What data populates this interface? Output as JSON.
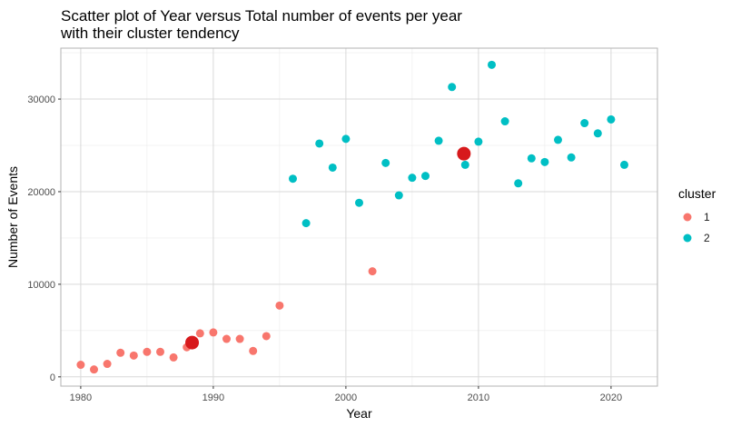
{
  "chart_data": {
    "type": "scatter",
    "title_lines": [
      "Scatter plot of Year versus Total number of events per year",
      "with their cluster tendency"
    ],
    "xlabel": "Year",
    "ylabel": "Number of Events",
    "xlim": [
      1978.5,
      2023.5
    ],
    "ylim": [
      -1000,
      35500
    ],
    "x_ticks": [
      1980,
      1990,
      2000,
      2010,
      2020
    ],
    "y_ticks": [
      0,
      10000,
      20000,
      30000
    ],
    "x_tick_labels": [
      "1980",
      "1990",
      "2000",
      "2010",
      "2020"
    ],
    "y_tick_labels": [
      "0",
      "10000",
      "20000",
      "30000"
    ],
    "grid": true,
    "legend": {
      "title": "cluster",
      "position": "right",
      "entries": [
        {
          "label": "1",
          "color": "#F8766D"
        },
        {
          "label": "2",
          "color": "#00BFC4"
        }
      ]
    },
    "series": [
      {
        "cluster": "1",
        "color": "#F8766D",
        "points": [
          [
            1980,
            1300
          ],
          [
            1981,
            800
          ],
          [
            1982,
            1400
          ],
          [
            1983,
            2600
          ],
          [
            1984,
            2300
          ],
          [
            1985,
            2700
          ],
          [
            1986,
            2700
          ],
          [
            1987,
            2100
          ],
          [
            1988,
            3200
          ],
          [
            1989,
            4700
          ],
          [
            1990,
            4800
          ],
          [
            1991,
            4100
          ],
          [
            1992,
            4100
          ],
          [
            1993,
            2800
          ],
          [
            1994,
            4400
          ],
          [
            1995,
            7700
          ],
          [
            2002,
            11400
          ]
        ]
      },
      {
        "cluster": "2",
        "color": "#00BFC4",
        "points": [
          [
            1996,
            21400
          ],
          [
            1997,
            16600
          ],
          [
            1998,
            25200
          ],
          [
            1999,
            22600
          ],
          [
            2000,
            25700
          ],
          [
            2001,
            18800
          ],
          [
            2003,
            23100
          ],
          [
            2004,
            19600
          ],
          [
            2005,
            21500
          ],
          [
            2006,
            21700
          ],
          [
            2007,
            25500
          ],
          [
            2008,
            31300
          ],
          [
            2009,
            22900
          ],
          [
            2010,
            25400
          ],
          [
            2011,
            33700
          ],
          [
            2012,
            27600
          ],
          [
            2013,
            20900
          ],
          [
            2014,
            23600
          ],
          [
            2015,
            23200
          ],
          [
            2016,
            25600
          ],
          [
            2017,
            23700
          ],
          [
            2018,
            27400
          ],
          [
            2019,
            26300
          ],
          [
            2020,
            27800
          ],
          [
            2021,
            22900
          ]
        ]
      }
    ],
    "centroids": {
      "color": "#D7191C",
      "points": [
        [
          1988.4,
          3700
        ],
        [
          2008.9,
          24100
        ]
      ]
    }
  }
}
